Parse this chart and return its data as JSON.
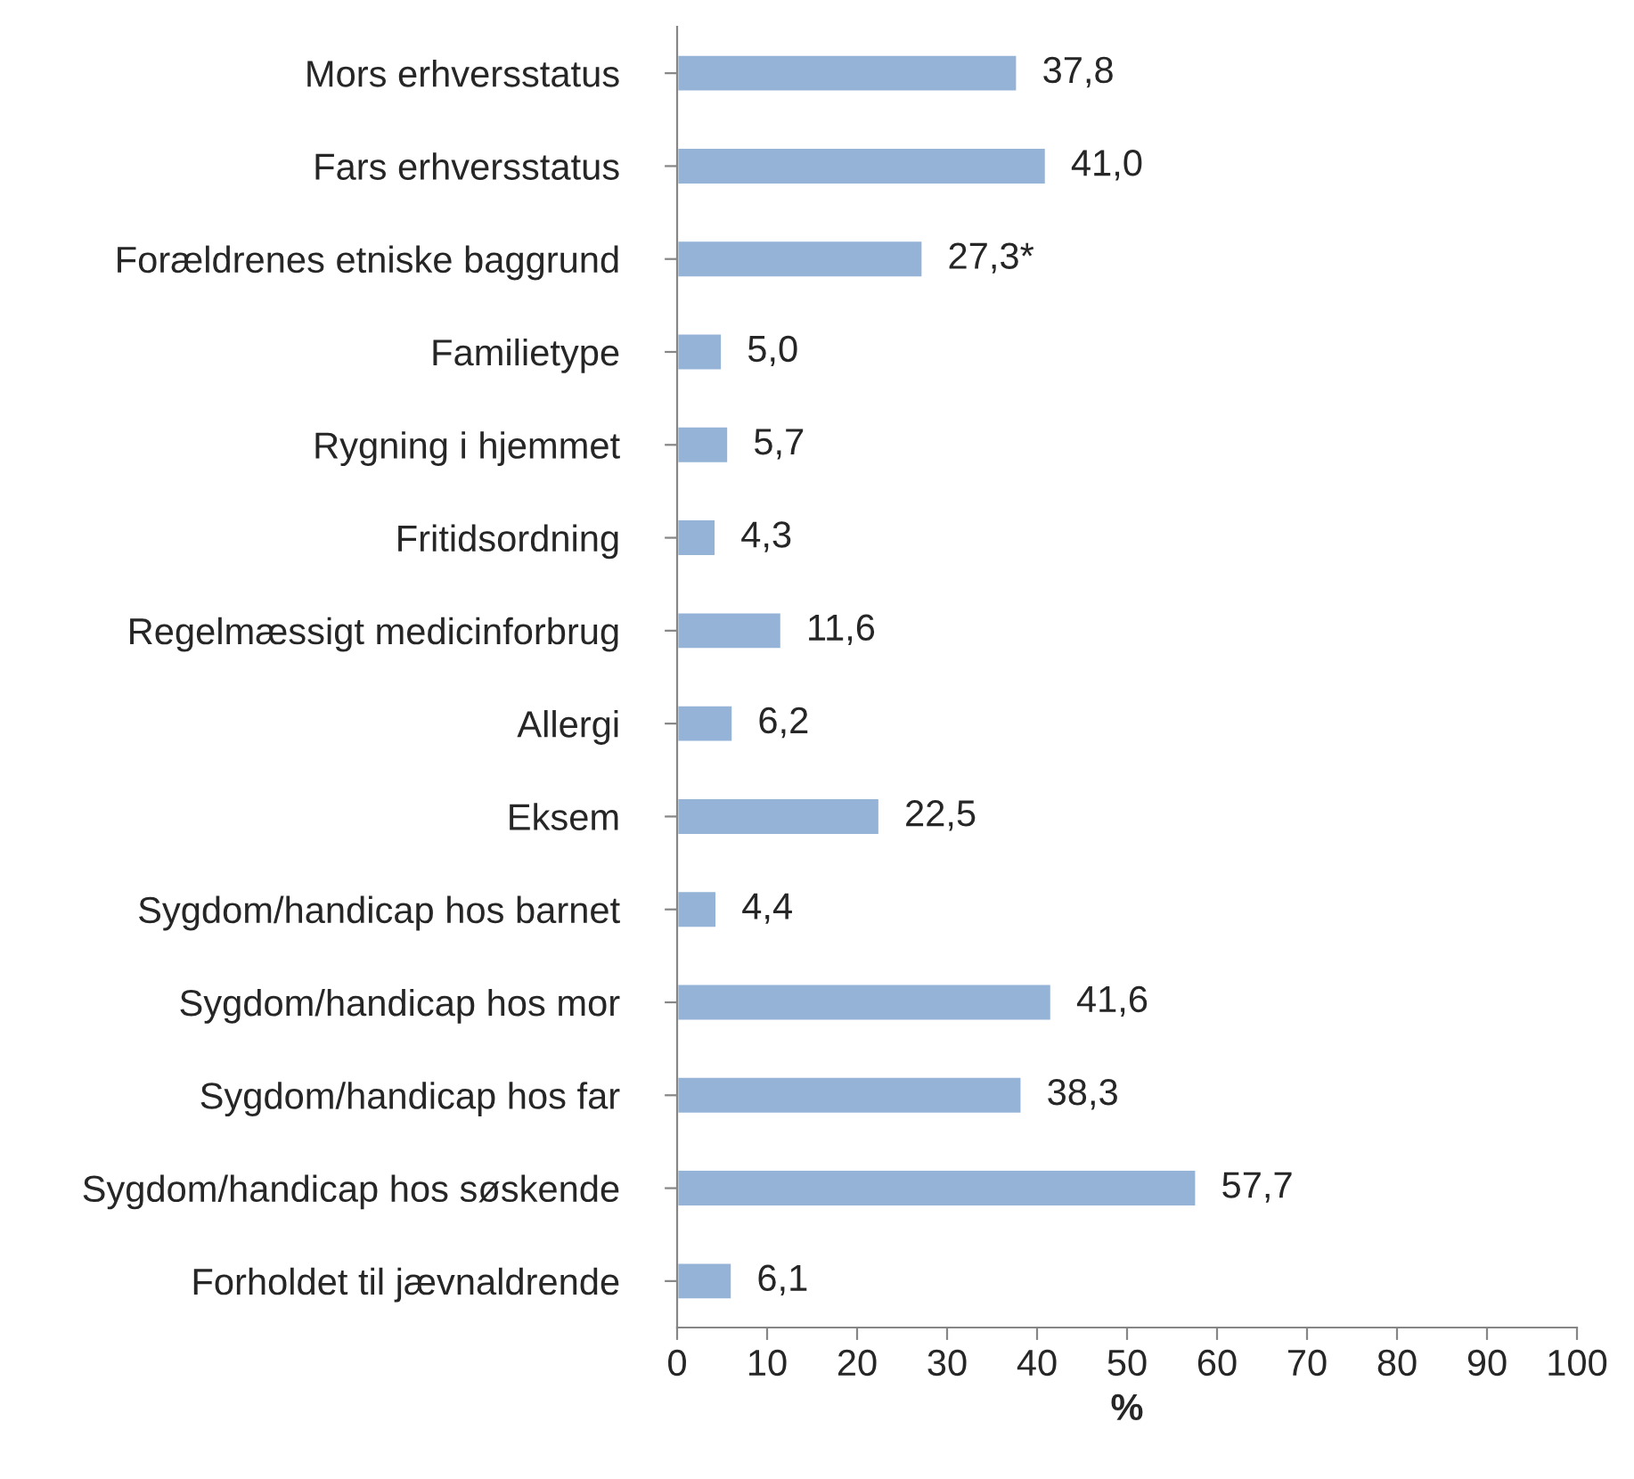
{
  "chart_data": {
    "type": "bar",
    "orientation": "horizontal",
    "xlabel": "%",
    "categories": [
      "Mors erhversstatus",
      "Fars erhversstatus",
      "Forældrenes etniske baggrund",
      "Familietype",
      "Rygning i hjemmet",
      "Fritidsordning",
      "Regelmæssigt medicinforbrug",
      "Allergi",
      "Eksem",
      "Sygdom/handicap hos barnet",
      "Sygdom/handicap hos mor",
      "Sygdom/handicap hos far",
      "Sygdom/handicap hos søskende",
      "Forholdet til jævnaldrende"
    ],
    "values": [
      37.8,
      41.0,
      27.3,
      5.0,
      5.7,
      4.3,
      11.6,
      6.2,
      22.5,
      4.4,
      41.6,
      38.3,
      57.7,
      6.1
    ],
    "value_labels": [
      "37,8",
      "41,0",
      "27,3*",
      "5,0",
      "5,7",
      "4,3",
      "11,6",
      "6,2",
      "22,5",
      "4,4",
      "41,6",
      "38,3",
      "57,7",
      "6,1"
    ],
    "color": "#95b3d7",
    "xlim": [
      0,
      100
    ],
    "xticks": [
      0,
      10,
      20,
      30,
      40,
      50,
      60,
      70,
      80,
      90,
      100
    ],
    "grid": false
  }
}
